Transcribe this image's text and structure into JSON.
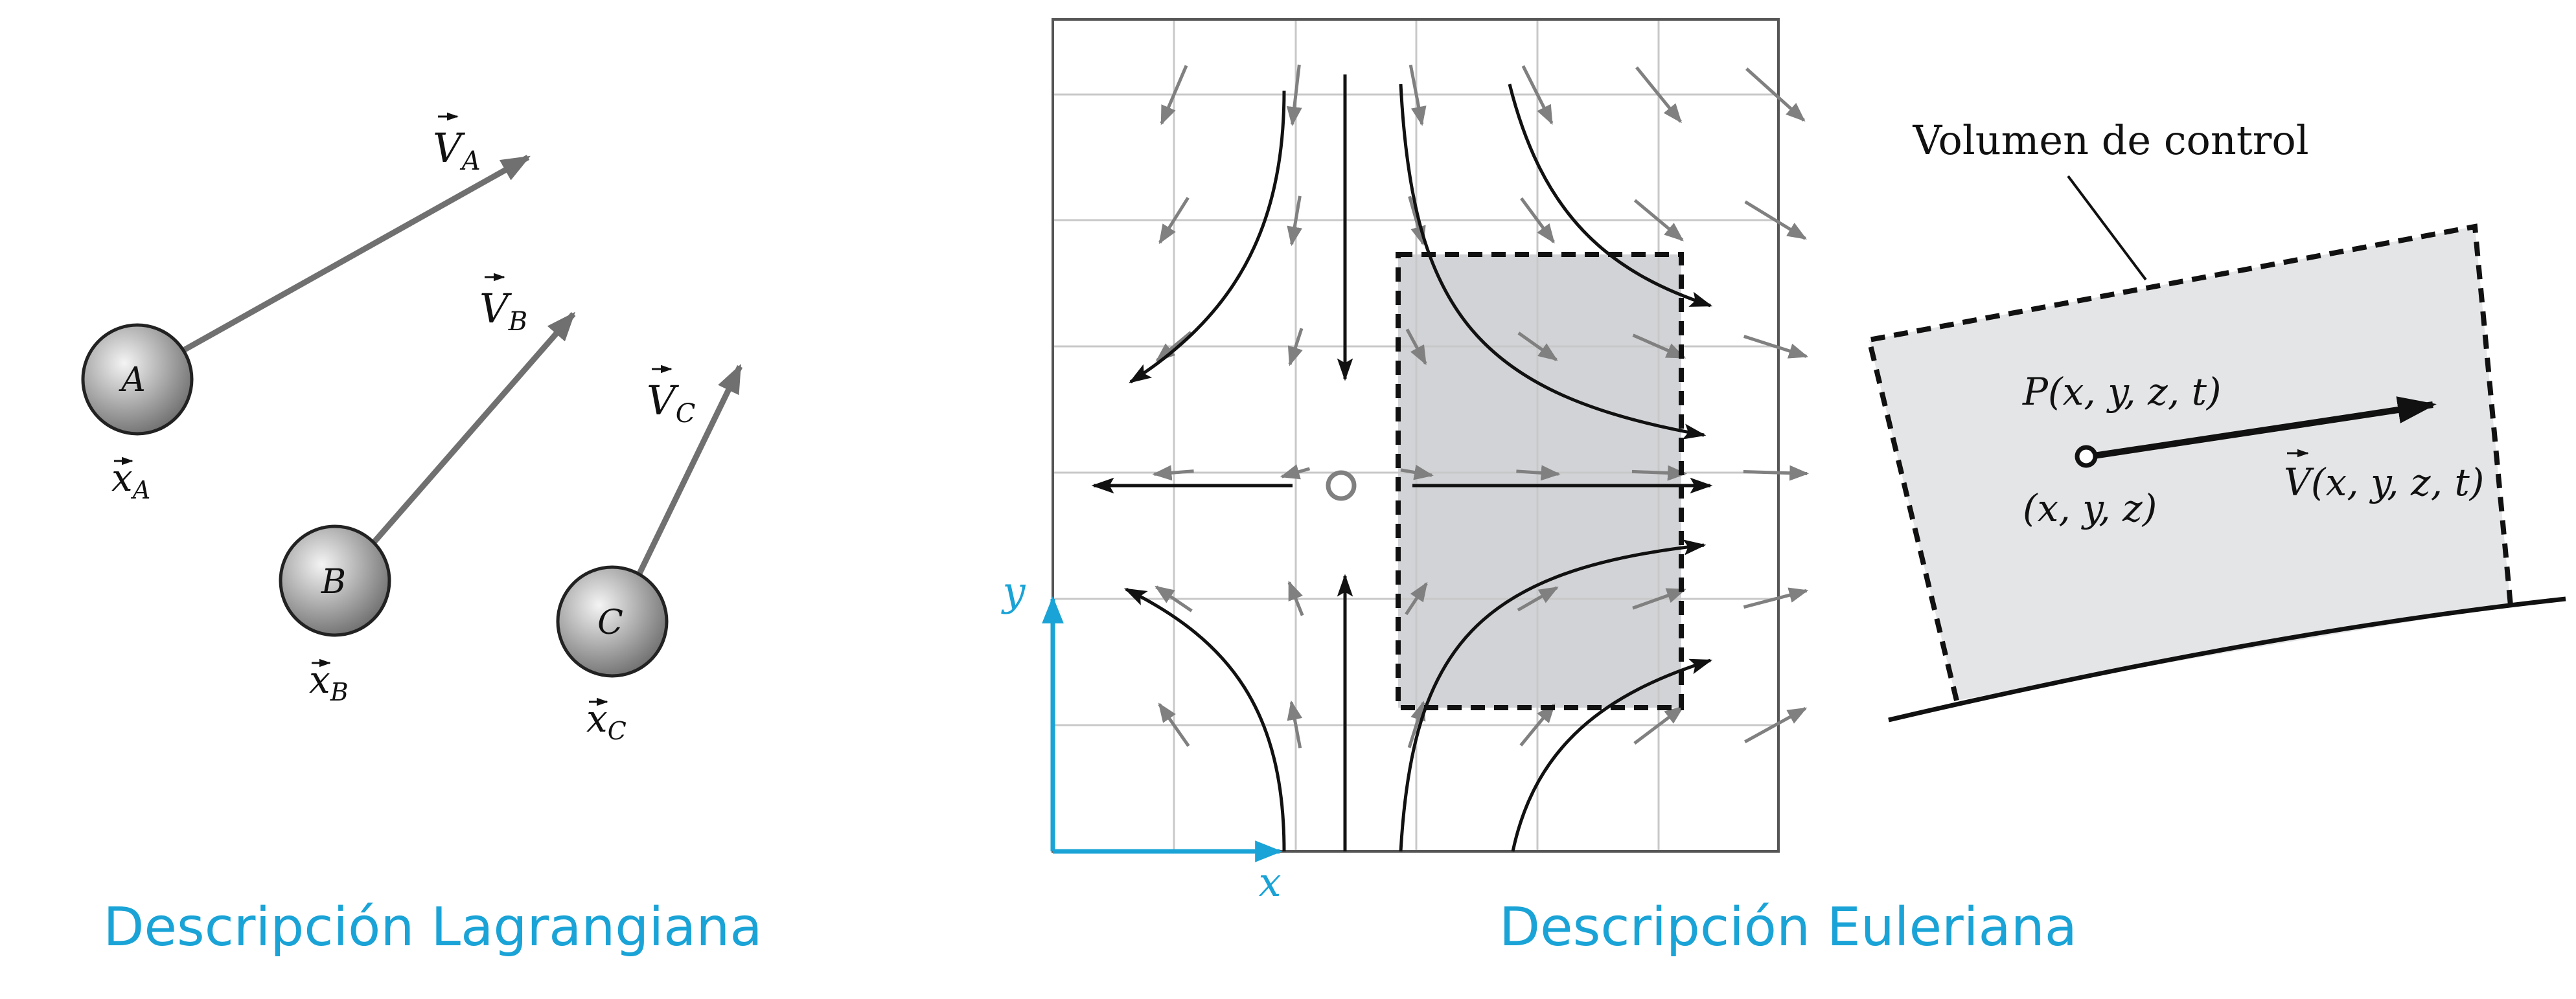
{
  "colors": {
    "caption": "#1aa3d6",
    "axis": "#1aa3d6",
    "grid": "#c8c8c8",
    "frame": "#555555",
    "gray_arrow": "#808080",
    "streamline": "#111111",
    "shade": "#d2d3d6",
    "cv_fill": "#e4e5e7",
    "sphere": "#9a9a9a"
  },
  "lagrangian": {
    "caption": "Descripción Lagrangiana",
    "particles": [
      {
        "id": "A",
        "label": "A",
        "velocity": "V",
        "velocity_sub": "A",
        "position": "x",
        "position_sub": "A"
      },
      {
        "id": "B",
        "label": "B",
        "velocity": "V",
        "velocity_sub": "B",
        "position": "x",
        "position_sub": "B"
      },
      {
        "id": "C",
        "label": "C",
        "velocity": "V",
        "velocity_sub": "C",
        "position": "x",
        "position_sub": "C"
      }
    ]
  },
  "eulerian": {
    "caption": "Descripción Euleriana",
    "axis_x": "x",
    "axis_y": "y",
    "control_volume_label": "Volumen de control",
    "point_label": "P(x, y, z, t)",
    "position_label": "(x, y, z)",
    "velocity_field_symbol": "V",
    "velocity_field_args": "(x, y, z, t)"
  }
}
